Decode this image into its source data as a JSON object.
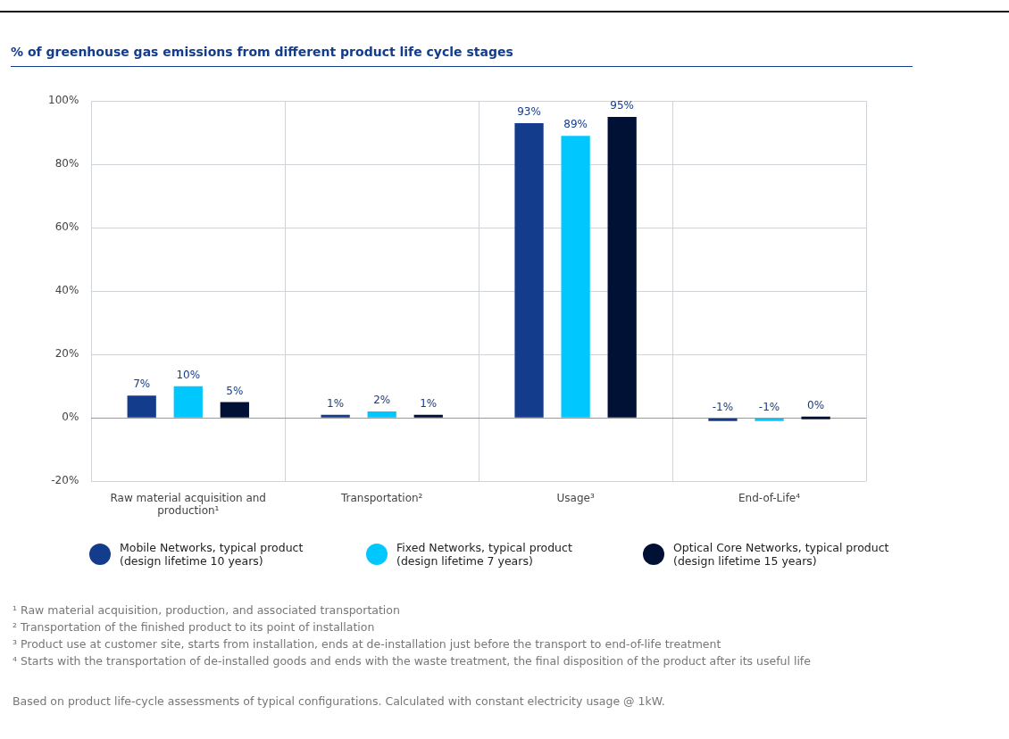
{
  "chart_data": {
    "type": "bar",
    "title": "% of greenhouse gas emissions from different product life cycle stages",
    "categories": [
      "Raw material acquisition and production¹",
      "Transportation²",
      "Usage³",
      "End-of-Life⁴"
    ],
    "series": [
      {
        "name": "Mobile Networks, typical product (design lifetime 10 years)",
        "color": "#143c8c",
        "values": [
          7,
          1,
          93,
          -1
        ],
        "value_labels": [
          "7%",
          "1%",
          "93%",
          "-1%"
        ]
      },
      {
        "name": "Fixed Networks, typical product (design lifetime 7 years)",
        "color": "#00c8ff",
        "values": [
          10,
          2,
          89,
          -1
        ],
        "value_labels": [
          "10%",
          "2%",
          "89%",
          "-1%"
        ]
      },
      {
        "name": "Optical Core Networks, typical product (design lifetime 15 years)",
        "color": "#001135",
        "values": [
          5,
          1,
          95,
          0
        ],
        "value_labels": [
          "5%",
          "1%",
          "95%",
          "0%"
        ]
      }
    ],
    "ylim": [
      -20,
      100
    ],
    "yticks": [
      {
        "value": -20,
        "label": "-20%"
      },
      {
        "value": 0,
        "label": "0%"
      },
      {
        "value": 20,
        "label": "20%"
      },
      {
        "value": 40,
        "label": "40%"
      },
      {
        "value": 60,
        "label": "60%"
      },
      {
        "value": 80,
        "label": "80%"
      },
      {
        "value": 100,
        "label": "100%"
      }
    ],
    "grid": true,
    "legend": "bottom",
    "annotations": [
      "¹ Raw material acquisition, production, and associated transportation",
      "² Transportation of the finished product to its point of installation",
      "³ Product use at customer site, starts from installation, ends at de-installation just before the transport to end-of-life treatment",
      "⁴ Starts with the transportation of de-installed goods and ends with the waste treatment, the final disposition of the product after its useful life",
      "Based on product life-cycle assessments of typical configurations. Calculated with constant electricity usage @ 1kW."
    ]
  }
}
